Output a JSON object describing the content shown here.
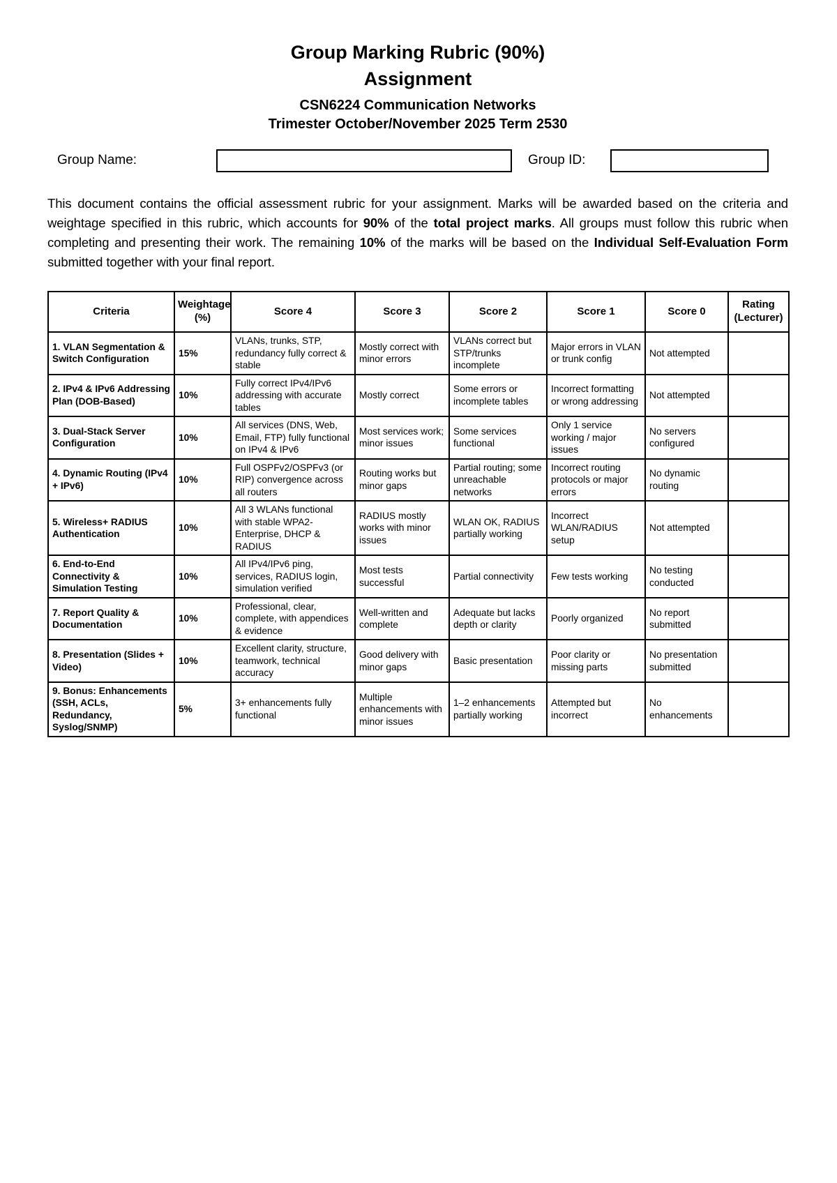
{
  "title": {
    "line1": "Group Marking Rubric (90%)",
    "line2": "Assignment",
    "line3": "CSN6224 Communication Networks",
    "line4": "Trimester October/November 2025 Term 2530"
  },
  "form": {
    "group_name_label": "Group Name:",
    "group_name_value": "",
    "group_id_label": "Group ID:",
    "group_id_value": ""
  },
  "intro": {
    "part1": "This document contains the official assessment rubric for your assignment. Marks will be awarded based on the criteria and weightage specified in this rubric, which accounts for ",
    "bold1": "90%",
    "part2": " of the ",
    "bold2": "total project marks",
    "part3": ". All groups must follow this rubric when completing and presenting their work. The remaining ",
    "bold3": "10%",
    "part4": " of the marks will be based on the ",
    "bold4": "Individual Self-Evaluation Form",
    "part5": " submitted together with your final report."
  },
  "table": {
    "headers": {
      "criteria": "Criteria",
      "weightage": "Weightage (%)",
      "score4": "Score 4",
      "score3": "Score 3",
      "score2": "Score 2",
      "score1": "Score 1",
      "score0": "Score 0",
      "rating": "Rating (Lecturer)"
    },
    "rows": [
      {
        "criteria": "1. VLAN Segmentation & Switch Configuration",
        "weightage": "15%",
        "score4": "VLANs, trunks, STP, redundancy fully correct & stable",
        "score3": "Mostly correct with minor errors",
        "score2": "VLANs correct but STP/trunks incomplete",
        "score1": "Major errors in VLAN or trunk config",
        "score0": "Not attempted",
        "rating": ""
      },
      {
        "criteria": "2. IPv4 & IPv6 Addressing Plan (DOB-Based)",
        "weightage": "10%",
        "score4": "Fully correct IPv4/IPv6 addressing with accurate tables",
        "score3": "Mostly correct",
        "score2": "Some errors or incomplete tables",
        "score1": "Incorrect formatting or wrong addressing",
        "score0": "Not attempted",
        "rating": ""
      },
      {
        "criteria": "3. Dual-Stack Server Configuration",
        "weightage": "10%",
        "score4": "All services (DNS, Web, Email, FTP) fully functional on IPv4 & IPv6",
        "score3": "Most services work; minor issues",
        "score2": "Some services functional",
        "score1": "Only 1 service working / major issues",
        "score0": "No servers configured",
        "rating": ""
      },
      {
        "criteria": "4. Dynamic Routing (IPv4 + IPv6)",
        "weightage": "10%",
        "score4": "Full OSPFv2/OSPFv3 (or RIP) convergence across all routers",
        "score3": "Routing works but minor gaps",
        "score2": "Partial routing; some unreachable networks",
        "score1": "Incorrect routing protocols or major errors",
        "score0": "No dynamic routing",
        "rating": ""
      },
      {
        "criteria": "5. Wireless+ RADIUS Authentication",
        "weightage": "10%",
        "score4": "All 3 WLANs functional with stable WPA2-Enterprise, DHCP & RADIUS",
        "score3": "RADIUS mostly works with minor issues",
        "score2": "WLAN OK, RADIUS partially working",
        "score1": "Incorrect WLAN/RADIUS setup",
        "score0": "Not attempted",
        "rating": ""
      },
      {
        "criteria": "6. End-to-End Connectivity & Simulation Testing",
        "weightage": "10%",
        "score4": "All IPv4/IPv6 ping, services, RADIUS login, simulation verified",
        "score3": "Most tests successful",
        "score2": "Partial connectivity",
        "score1": "Few tests working",
        "score0": "No testing conducted",
        "rating": ""
      },
      {
        "criteria": "7. Report Quality & Documentation",
        "weightage": "10%",
        "score4": "Professional, clear, complete, with appendices & evidence",
        "score3": "Well-written and complete",
        "score2": "Adequate but lacks depth or clarity",
        "score1": "Poorly organized",
        "score0": "No report submitted",
        "rating": ""
      },
      {
        "criteria": "8. Presentation (Slides + Video)",
        "weightage": "10%",
        "score4": "Excellent clarity, structure, teamwork, technical accuracy",
        "score3": "Good delivery with minor gaps",
        "score2": "Basic presentation",
        "score1": "Poor clarity or missing parts",
        "score0": "No presentation submitted",
        "rating": ""
      },
      {
        "criteria": "9. Bonus: Enhancements (SSH, ACLs, Redundancy, Syslog/SNMP)",
        "weightage": "5%",
        "score4": "3+ enhancements fully functional",
        "score3": "Multiple enhancements with minor issues",
        "score2": "1–2 enhancements partially working",
        "score1": "Attempted but incorrect",
        "score0": "No enhancements",
        "rating": ""
      }
    ]
  }
}
